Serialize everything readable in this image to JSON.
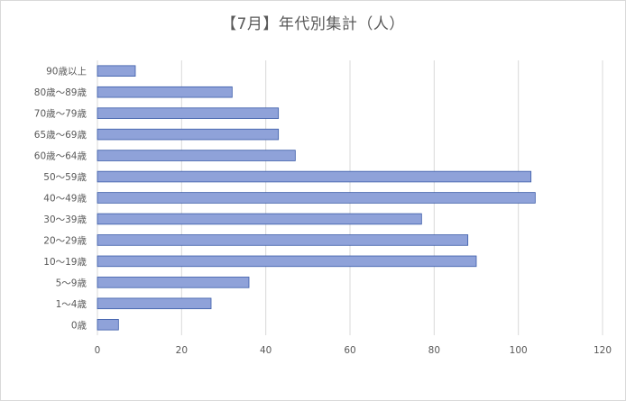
{
  "chart_data": {
    "type": "bar",
    "orientation": "horizontal",
    "title": "【7月】年代別集計（人）",
    "categories": [
      "0歳",
      "1～4歳",
      "5～9歳",
      "10～19歳",
      "20～29歳",
      "30～39歳",
      "40～49歳",
      "50～59歳",
      "60歳～64歳",
      "65歳～69歳",
      "70歳～79歳",
      "80歳～89歳",
      "90歳以上"
    ],
    "values": [
      5,
      27,
      36,
      90,
      88,
      77,
      104,
      103,
      47,
      43,
      43,
      32,
      9
    ],
    "xlim": [
      0,
      120
    ],
    "xticks": [
      0,
      20,
      40,
      60,
      80,
      100,
      120
    ],
    "grid": "vertical",
    "legend": "none",
    "colors": {
      "bar_fill": "#8FA2D9",
      "bar_stroke": "#3A5BA8",
      "grid": "#d9d9d9",
      "text": "#595959"
    }
  }
}
